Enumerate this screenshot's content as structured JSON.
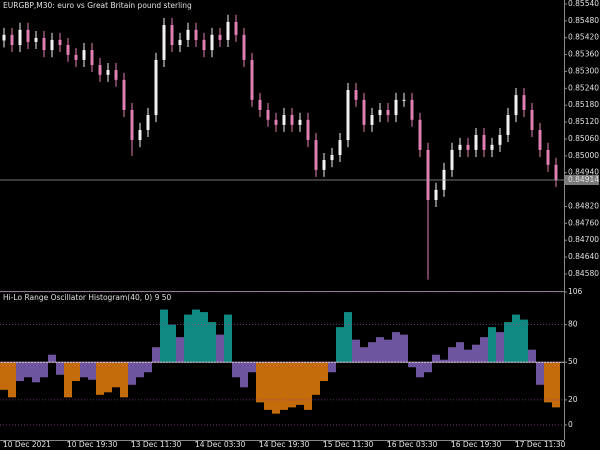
{
  "chart_data": [
    {
      "type": "candlestick",
      "title": "EURGBP,M30:  euro vs Great Britain pound sterling",
      "categories": [
        "10 Dec 2021",
        null,
        null,
        null,
        null,
        null,
        null,
        null,
        "10 Dec 19:30",
        null,
        null,
        null,
        null,
        null,
        null,
        null,
        "13 Dec 11:30",
        null,
        null,
        null,
        null,
        null,
        null,
        null,
        "14 Dec 03:30",
        null,
        null,
        null,
        null,
        null,
        null,
        null,
        "14 Dec 19:30",
        null,
        null,
        null,
        null,
        null,
        null,
        null,
        "15 Dec 11:30",
        null,
        null,
        null,
        null,
        null,
        null,
        null,
        "16 Dec 03:30",
        null,
        null,
        null,
        null,
        null,
        null,
        null,
        "16 Dec 19:30",
        null,
        null,
        null,
        null,
        null,
        null,
        null,
        "17 Dec 11:30",
        null,
        null,
        null,
        null,
        null
      ],
      "open": [
        0.8541,
        0.8543,
        0.85394,
        0.85448,
        0.85405,
        0.85419,
        0.85376,
        0.85412,
        0.85394,
        0.85359,
        0.85341,
        0.85376,
        0.85323,
        0.85288,
        0.85305,
        0.8527,
        0.85163,
        0.85056,
        0.85092,
        0.85145,
        0.85341,
        0.85465,
        0.85394,
        0.85412,
        0.85448,
        0.85412,
        0.85376,
        0.8543,
        0.85412,
        0.85476,
        0.8543,
        0.85341,
        0.85199,
        0.85163,
        0.85128,
        0.8511,
        0.85145,
        0.8511,
        0.85128,
        0.85056,
        0.8495,
        0.84985,
        0.85003,
        0.85056,
        0.85234,
        0.85199,
        0.8511,
        0.85145,
        0.85163,
        0.85145,
        0.85199,
        0.85199,
        0.85128,
        0.85021,
        0.84843,
        0.84879,
        0.8495,
        0.85021,
        0.85039,
        0.85021,
        0.85074,
        0.85021,
        0.85039,
        0.85074,
        0.85145,
        0.85216,
        0.85163,
        0.85092,
        0.85021,
        0.84968
      ],
      "high": [
        0.85455,
        0.85455,
        0.85473,
        0.85473,
        0.85444,
        0.85444,
        0.85437,
        0.85437,
        0.85419,
        0.85384,
        0.85401,
        0.85401,
        0.85348,
        0.8533,
        0.8533,
        0.85295,
        0.85188,
        0.85117,
        0.8517,
        0.85366,
        0.8549,
        0.8549,
        0.85437,
        0.85473,
        0.85473,
        0.85437,
        0.85455,
        0.85455,
        0.85501,
        0.85501,
        0.85455,
        0.85366,
        0.85224,
        0.85188,
        0.85153,
        0.8517,
        0.8517,
        0.85153,
        0.85153,
        0.85081,
        0.8501,
        0.85028,
        0.85081,
        0.85259,
        0.85259,
        0.85224,
        0.8517,
        0.85188,
        0.85188,
        0.85224,
        0.85224,
        0.85224,
        0.85153,
        0.85046,
        0.84904,
        0.84975,
        0.85046,
        0.85064,
        0.85064,
        0.85099,
        0.85099,
        0.85064,
        0.85099,
        0.8517,
        0.85241,
        0.85241,
        0.85188,
        0.85117,
        0.85046,
        0.84993
      ],
      "low": [
        0.85385,
        0.85369,
        0.85369,
        0.8538,
        0.8538,
        0.85351,
        0.85351,
        0.85369,
        0.85334,
        0.85316,
        0.85316,
        0.85298,
        0.85263,
        0.85263,
        0.85245,
        0.85138,
        0.85,
        0.85031,
        0.85067,
        0.8512,
        0.85316,
        0.85369,
        0.85369,
        0.85387,
        0.85387,
        0.85351,
        0.85351,
        0.85387,
        0.85387,
        0.85405,
        0.85316,
        0.85174,
        0.85138,
        0.85103,
        0.85085,
        0.85085,
        0.85085,
        0.85085,
        0.85031,
        0.84925,
        0.84925,
        0.8496,
        0.84978,
        0.85031,
        0.85174,
        0.85085,
        0.85085,
        0.8512,
        0.8512,
        0.8512,
        0.85174,
        0.85103,
        0.84996,
        0.8456,
        0.84818,
        0.84854,
        0.84925,
        0.84996,
        0.84996,
        0.84996,
        0.84996,
        0.84996,
        0.85014,
        0.85049,
        0.8512,
        0.85138,
        0.85067,
        0.84996,
        0.84943,
        0.84889
      ],
      "close": [
        0.8543,
        0.85394,
        0.85448,
        0.85405,
        0.85419,
        0.85376,
        0.85412,
        0.85394,
        0.85359,
        0.85341,
        0.85376,
        0.85323,
        0.85288,
        0.85305,
        0.8527,
        0.85163,
        0.85056,
        0.85092,
        0.85145,
        0.85341,
        0.85465,
        0.85394,
        0.85412,
        0.85448,
        0.85412,
        0.85376,
        0.8543,
        0.85412,
        0.85476,
        0.8543,
        0.85341,
        0.85199,
        0.85163,
        0.85128,
        0.8511,
        0.85145,
        0.8511,
        0.85128,
        0.85056,
        0.8495,
        0.84985,
        0.85003,
        0.85056,
        0.85234,
        0.85199,
        0.8511,
        0.85145,
        0.85163,
        0.85145,
        0.85199,
        0.85199,
        0.85128,
        0.85021,
        0.84843,
        0.84879,
        0.8495,
        0.85021,
        0.85039,
        0.85021,
        0.85074,
        0.85021,
        0.85039,
        0.85074,
        0.85145,
        0.85216,
        0.85163,
        0.85092,
        0.85021,
        0.84968,
        0.84914
      ],
      "up_color": "#f2f2f2",
      "down_color": "#e27fb2",
      "ylim": [
        0.84523,
        0.85554
      ],
      "yticks": [
        {
          "value": 0.8554,
          "label": "0.85540"
        },
        {
          "value": 0.8548,
          "label": "0.85480"
        },
        {
          "value": 0.8542,
          "label": "0.85420"
        },
        {
          "value": 0.8536,
          "label": "0.85360"
        },
        {
          "value": 0.853,
          "label": "0.85300"
        },
        {
          "value": 0.8524,
          "label": "0.85240"
        },
        {
          "value": 0.8518,
          "label": "0.85180"
        },
        {
          "value": 0.8512,
          "label": "0.85120"
        },
        {
          "value": 0.8506,
          "label": "0.85060"
        },
        {
          "value": 0.85,
          "label": "0.85000"
        },
        {
          "value": 0.8494,
          "label": "0.84940"
        },
        {
          "value": 0.8482,
          "label": "0.84820"
        },
        {
          "value": 0.8476,
          "label": "0.84760"
        },
        {
          "value": 0.847,
          "label": "0.84700"
        },
        {
          "value": 0.8464,
          "label": "0.84640"
        },
        {
          "value": 0.8458,
          "label": "0.84580"
        }
      ],
      "last_price": {
        "value": 0.84914,
        "label": "0.84914"
      }
    },
    {
      "type": "histogram",
      "title": "Hi-Lo Range Oscillator Histogram(40, 0) 9 50",
      "base": 50,
      "values": [
        28,
        22,
        35,
        38,
        34,
        38,
        56,
        40,
        22,
        35,
        38,
        36,
        24,
        26,
        30,
        22,
        32,
        38,
        42,
        62,
        92,
        80,
        70,
        88,
        92,
        90,
        82,
        72,
        88,
        38,
        30,
        42,
        18,
        12,
        9,
        12,
        14,
        16,
        12,
        24,
        35,
        42,
        78,
        90,
        68,
        62,
        66,
        70,
        68,
        74,
        72,
        46,
        38,
        42,
        56,
        52,
        62,
        66,
        60,
        64,
        70,
        78,
        74,
        82,
        88,
        84,
        60,
        32,
        18,
        14
      ],
      "colors": [
        "#c46b0c",
        "#c46b0c",
        "#6e559f",
        "#6e559f",
        "#6e559f",
        "#6e559f",
        "#6e559f",
        "#6e559f",
        "#c46b0c",
        "#c46b0c",
        "#6e559f",
        "#6e559f",
        "#c46b0c",
        "#c46b0c",
        "#c46b0c",
        "#c46b0c",
        "#6e559f",
        "#6e559f",
        "#6e559f",
        "#6e559f",
        "#0f8a80",
        "#0f8a80",
        "#6e559f",
        "#0f8a80",
        "#0f8a80",
        "#0f8a80",
        "#0f8a80",
        "#6e559f",
        "#0f8a80",
        "#6e559f",
        "#6e559f",
        "#6e559f",
        "#c46b0c",
        "#c46b0c",
        "#c46b0c",
        "#c46b0c",
        "#c46b0c",
        "#c46b0c",
        "#c46b0c",
        "#c46b0c",
        "#c46b0c",
        "#6e559f",
        "#0f8a80",
        "#0f8a80",
        "#6e559f",
        "#6e559f",
        "#6e559f",
        "#6e559f",
        "#6e559f",
        "#6e559f",
        "#6e559f",
        "#6e559f",
        "#6e559f",
        "#6e559f",
        "#6e559f",
        "#6e559f",
        "#6e559f",
        "#6e559f",
        "#6e559f",
        "#6e559f",
        "#6e559f",
        "#0f8a80",
        "#6e559f",
        "#0f8a80",
        "#0f8a80",
        "#0f8a80",
        "#6e559f",
        "#6e559f",
        "#c46b0c",
        "#c46b0c"
      ],
      "ylim": [
        -12,
        106
      ],
      "yticks": [
        106,
        80,
        50,
        20,
        0
      ]
    }
  ]
}
